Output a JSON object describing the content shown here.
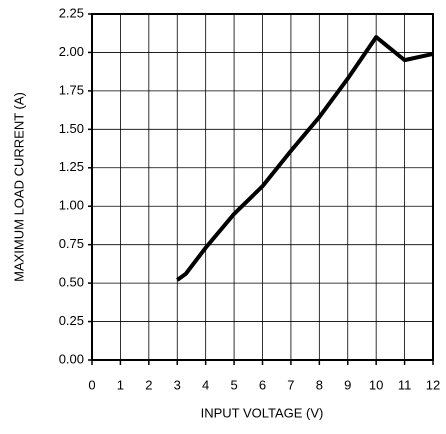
{
  "chart_data": {
    "type": "line",
    "xlabel": "INPUT VOLTAGE (V)",
    "ylabel": "MAXIMUM LOAD CURRENT (A)",
    "x": [
      3,
      3.3,
      4,
      5,
      6,
      7,
      8,
      9,
      10,
      11,
      12
    ],
    "series": [
      {
        "color": "#000000",
        "values": [
          0.52,
          0.56,
          0.73,
          0.95,
          1.13,
          1.36,
          1.58,
          1.83,
          2.1,
          1.95,
          1.99
        ]
      }
    ],
    "xlim": [
      0,
      12
    ],
    "xticks": [
      0,
      1,
      2,
      3,
      4,
      5,
      6,
      7,
      8,
      9,
      10,
      11,
      12
    ],
    "ylim": [
      0,
      2.25
    ],
    "yticks": [
      {
        "value": 0,
        "label": "0.00"
      },
      0.25,
      {
        "value": 0.5,
        "label": "0.50"
      },
      0.75,
      {
        "value": 1,
        "label": "1.00"
      },
      1.25,
      {
        "value": 1.5,
        "label": "1.50"
      },
      1.75,
      {
        "value": 2,
        "label": "2.00"
      },
      2.25
    ],
    "grid": true
  }
}
